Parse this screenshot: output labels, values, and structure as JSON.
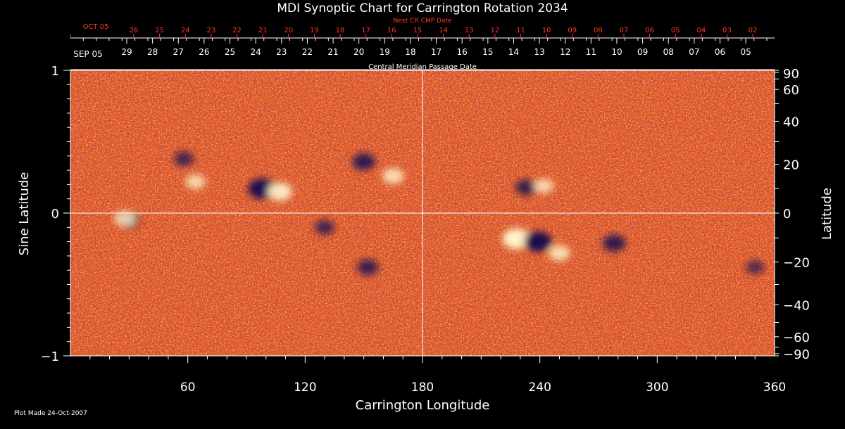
{
  "chart_data": {
    "type": "heatmap",
    "title": "MDI Synoptic Chart for Carrington Rotation 2034",
    "xlabel": "Carrington Longitude",
    "ylabel_left": "Sine Latitude",
    "ylabel_right": "Latitude",
    "xlim": [
      0,
      360
    ],
    "ylim": [
      -1,
      1
    ],
    "x_ticks": [
      60,
      120,
      180,
      240,
      300,
      360
    ],
    "y_ticks_left": [
      {
        "value": 1,
        "label": "1"
      },
      {
        "value": 0,
        "label": "0"
      },
      {
        "value": -1,
        "label": "−1"
      }
    ],
    "y_ticks_right": [
      {
        "deg": 90,
        "label": "90"
      },
      {
        "deg": 60,
        "label": "60"
      },
      {
        "deg": 40,
        "label": "40"
      },
      {
        "deg": 20,
        "label": "20"
      },
      {
        "deg": 0,
        "label": "0"
      },
      {
        "deg": -20,
        "label": "−20"
      },
      {
        "deg": -40,
        "label": "−40"
      },
      {
        "deg": -60,
        "label": "−60"
      },
      {
        "deg": -90,
        "label": "−90"
      }
    ],
    "cmp_axis": {
      "title": "Central Meridian Passage Date",
      "start_label": "SEP 05",
      "dates": [
        "29",
        "28",
        "27",
        "26",
        "25",
        "24",
        "23",
        "22",
        "21",
        "20",
        "19",
        "18",
        "17",
        "16",
        "15",
        "14",
        "13",
        "12",
        "11",
        "10",
        "09",
        "08",
        "07",
        "06",
        "05"
      ]
    },
    "next_cr_axis": {
      "title": "Next CR CMP Date",
      "start_label": "OCT 05",
      "dates": [
        "26",
        "25",
        "24",
        "23",
        "22",
        "21",
        "20",
        "19",
        "18",
        "17",
        "16",
        "15",
        "14",
        "13",
        "12",
        "11",
        "10",
        "09",
        "08",
        "07",
        "06",
        "05",
        "04",
        "03",
        "02"
      ]
    },
    "colors": {
      "background": "#000000",
      "field_base": "#e2541b",
      "positive": "#fff4c8",
      "negative": "#1a1050",
      "axis_red": "#ff3b1f"
    },
    "features": [
      {
        "type": "negative",
        "lon": 98,
        "sinlat": 0.17,
        "strength": 1.0
      },
      {
        "type": "positive",
        "lon": 107,
        "sinlat": 0.15,
        "strength": 0.8
      },
      {
        "type": "negative",
        "lon": 150,
        "sinlat": 0.36,
        "strength": 0.7
      },
      {
        "type": "positive",
        "lon": 165,
        "sinlat": 0.26,
        "strength": 0.6
      },
      {
        "type": "positive",
        "lon": 64,
        "sinlat": 0.22,
        "strength": 0.5
      },
      {
        "type": "negative",
        "lon": 58,
        "sinlat": 0.38,
        "strength": 0.5
      },
      {
        "type": "negative",
        "lon": 130,
        "sinlat": -0.1,
        "strength": 0.5
      },
      {
        "type": "negative",
        "lon": 152,
        "sinlat": -0.38,
        "strength": 0.6
      },
      {
        "type": "negative",
        "lon": 30,
        "sinlat": -0.05,
        "strength": 0.6
      },
      {
        "type": "positive",
        "lon": 28,
        "sinlat": -0.04,
        "strength": 0.6
      },
      {
        "type": "positive",
        "lon": 228,
        "sinlat": -0.18,
        "strength": 1.0
      },
      {
        "type": "negative",
        "lon": 239,
        "sinlat": -0.2,
        "strength": 1.0
      },
      {
        "type": "positive",
        "lon": 250,
        "sinlat": -0.28,
        "strength": 0.6
      },
      {
        "type": "negative",
        "lon": 278,
        "sinlat": -0.21,
        "strength": 0.7
      },
      {
        "type": "negative",
        "lon": 233,
        "sinlat": 0.18,
        "strength": 0.6
      },
      {
        "type": "positive",
        "lon": 242,
        "sinlat": 0.19,
        "strength": 0.5
      },
      {
        "type": "negative",
        "lon": 350,
        "sinlat": -0.38,
        "strength": 0.4
      }
    ]
  },
  "footer": {
    "plot_made": "Plot Made 24-Oct-2007"
  }
}
